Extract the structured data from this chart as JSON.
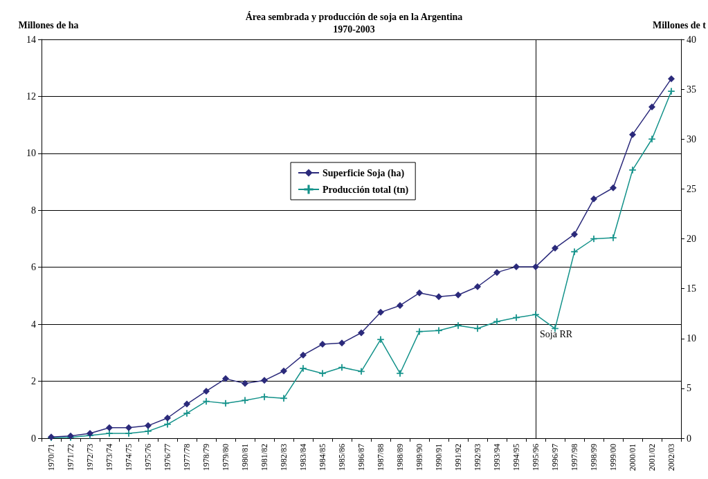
{
  "chart_data": {
    "type": "line",
    "title": "Área sembrada y producción de soja en la Argentina",
    "subtitle": "1970-2003",
    "ylabel": "Millones de ha",
    "y2label": "Millones de t",
    "categories": [
      "1970/71",
      "1971/72",
      "1972/73",
      "1973/74",
      "1974/75",
      "1975/76",
      "1976/77",
      "1977/78",
      "1978/79",
      "1979/80",
      "1980/81",
      "1981/82",
      "1982/83",
      "1983/84",
      "1984/85",
      "1985/86",
      "1986/87",
      "1987/88",
      "1988/89",
      "1989/90",
      "1990/91",
      "1991/92",
      "1992/93",
      "1993/94",
      "1994/95",
      "1995/96",
      "1996/97",
      "1997/98",
      "1998/99",
      "1999/00",
      "2000/01",
      "2001/02",
      "2002/03"
    ],
    "series": [
      {
        "name": "Superficie Soja (ha)",
        "color": "#2b2a7b",
        "marker": "diamond",
        "values": [
          0.04,
          0.08,
          0.17,
          0.37,
          0.37,
          0.44,
          0.71,
          1.2,
          1.65,
          2.09,
          1.92,
          2.03,
          2.36,
          2.92,
          3.3,
          3.34,
          3.7,
          4.42,
          4.66,
          5.1,
          4.97,
          5.03,
          5.32,
          5.82,
          6.02,
          6.02,
          6.67,
          7.16,
          8.4,
          8.79,
          10.66,
          11.63,
          12.62
        ]
      },
      {
        "name": "Producción total (tn)",
        "color": "#13928a",
        "marker": "cross",
        "axis": "y2",
        "values": [
          0.06,
          0.08,
          0.27,
          0.49,
          0.49,
          0.7,
          1.4,
          2.5,
          3.7,
          3.5,
          3.8,
          4.15,
          4.0,
          7.0,
          6.5,
          7.1,
          6.7,
          9.9,
          6.5,
          10.7,
          10.8,
          11.3,
          11.0,
          11.7,
          12.1,
          12.4,
          11.0,
          18.7,
          20.0,
          20.1,
          26.9,
          30.0,
          34.8
        ]
      }
    ],
    "ylim": [
      0,
      14
    ],
    "yticks": [
      0,
      2,
      4,
      6,
      8,
      10,
      12,
      14
    ],
    "y2lim": [
      0,
      40
    ],
    "y2ticks": [
      0,
      5,
      10,
      15,
      20,
      25,
      30,
      35,
      40
    ],
    "ref_lines": [
      {
        "axis": "x",
        "value": "1995/96",
        "label": "Soja RR",
        "color": "#000000"
      }
    ],
    "grid": "y",
    "legend": "center"
  }
}
